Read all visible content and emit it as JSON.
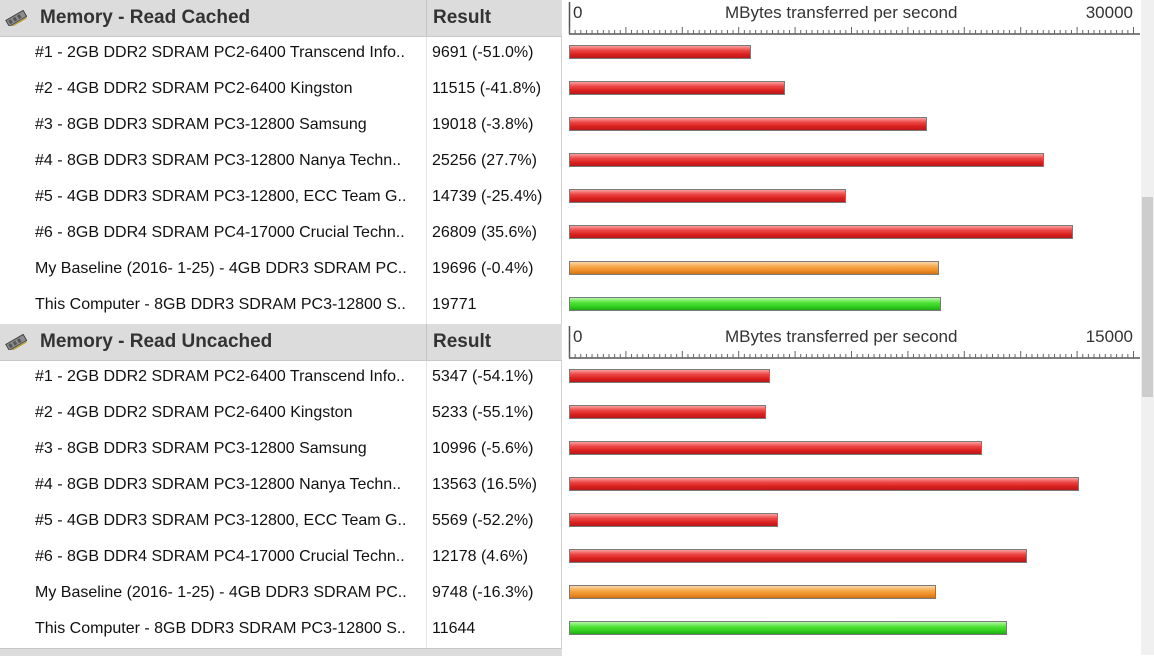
{
  "sections": [
    {
      "title": "Memory - Read Cached",
      "result_header": "Result",
      "axis": {
        "min_label": "0",
        "title": "MBytes transferred per second",
        "max_label": "30000",
        "max": 30000
      },
      "rows": [
        {
          "name": "#1 - 2GB DDR2 SDRAM PC2-6400 Transcend Info..",
          "result": "9691 (-51.0%)",
          "value": 9691,
          "color": "red"
        },
        {
          "name": "#2 - 4GB DDR2 SDRAM PC2-6400 Kingston",
          "result": "11515 (-41.8%)",
          "value": 11515,
          "color": "red"
        },
        {
          "name": "#3 - 8GB DDR3 SDRAM PC3-12800 Samsung",
          "result": "19018 (-3.8%)",
          "value": 19018,
          "color": "red"
        },
        {
          "name": "#4 - 8GB DDR3 SDRAM PC3-12800 Nanya Techn..",
          "result": "25256 (27.7%)",
          "value": 25256,
          "color": "red"
        },
        {
          "name": "#5 - 4GB DDR3 SDRAM PC3-12800, ECC Team G..",
          "result": "14739 (-25.4%)",
          "value": 14739,
          "color": "red"
        },
        {
          "name": "#6 - 8GB DDR4 SDRAM PC4-17000 Crucial Techn..",
          "result": "26809 (35.6%)",
          "value": 26809,
          "color": "red"
        },
        {
          "name": "My Baseline (2016- 1-25) - 4GB DDR3 SDRAM PC..",
          "result": "19696 (-0.4%)",
          "value": 19696,
          "color": "orange"
        },
        {
          "name": "This Computer - 8GB DDR3 SDRAM PC3-12800 S..",
          "result": "19771",
          "value": 19771,
          "color": "green"
        }
      ]
    },
    {
      "title": "Memory - Read Uncached",
      "result_header": "Result",
      "axis": {
        "min_label": "0",
        "title": "MBytes transferred per second",
        "max_label": "15000",
        "max": 15000
      },
      "rows": [
        {
          "name": "#1 - 2GB DDR2 SDRAM PC2-6400 Transcend Info..",
          "result": "5347 (-54.1%)",
          "value": 5347,
          "color": "red"
        },
        {
          "name": "#2 - 4GB DDR2 SDRAM PC2-6400 Kingston",
          "result": "5233 (-55.1%)",
          "value": 5233,
          "color": "red"
        },
        {
          "name": "#3 - 8GB DDR3 SDRAM PC3-12800 Samsung",
          "result": "10996 (-5.6%)",
          "value": 10996,
          "color": "red"
        },
        {
          "name": "#4 - 8GB DDR3 SDRAM PC3-12800 Nanya Techn..",
          "result": "13563 (16.5%)",
          "value": 13563,
          "color": "red"
        },
        {
          "name": "#5 - 4GB DDR3 SDRAM PC3-12800, ECC Team G..",
          "result": "5569 (-52.2%)",
          "value": 5569,
          "color": "red"
        },
        {
          "name": "#6 - 8GB DDR4 SDRAM PC4-17000 Crucial Techn..",
          "result": "12178 (4.6%)",
          "value": 12178,
          "color": "red"
        },
        {
          "name": "My Baseline (2016- 1-25) - 4GB DDR3 SDRAM PC..",
          "result": "9748 (-16.3%)",
          "value": 9748,
          "color": "orange"
        },
        {
          "name": "This Computer - 8GB DDR3 SDRAM PC3-12800 S..",
          "result": "11644",
          "value": 11644,
          "color": "green"
        }
      ]
    }
  ],
  "chart_data": [
    {
      "type": "bar",
      "title": "Memory - Read Cached",
      "xlabel": "MBytes transferred per second",
      "xlim": [
        0,
        30000
      ],
      "categories": [
        "#1 - 2GB DDR2 SDRAM PC2-6400 Transcend Info..",
        "#2 - 4GB DDR2 SDRAM PC2-6400 Kingston",
        "#3 - 8GB DDR3 SDRAM PC3-12800 Samsung",
        "#4 - 8GB DDR3 SDRAM PC3-12800 Nanya Techn..",
        "#5 - 4GB DDR3 SDRAM PC3-12800, ECC Team G..",
        "#6 - 8GB DDR4 SDRAM PC4-17000 Crucial Techn..",
        "My Baseline (2016- 1-25) - 4GB DDR3 SDRAM PC..",
        "This Computer - 8GB DDR3 SDRAM PC3-12800 S.."
      ],
      "values": [
        9691,
        11515,
        19018,
        25256,
        14739,
        26809,
        19696,
        19771
      ]
    },
    {
      "type": "bar",
      "title": "Memory - Read Uncached",
      "xlabel": "MBytes transferred per second",
      "xlim": [
        0,
        15000
      ],
      "categories": [
        "#1 - 2GB DDR2 SDRAM PC2-6400 Transcend Info..",
        "#2 - 4GB DDR2 SDRAM PC2-6400 Kingston",
        "#3 - 8GB DDR3 SDRAM PC3-12800 Samsung",
        "#4 - 8GB DDR3 SDRAM PC3-12800 Nanya Techn..",
        "#5 - 4GB DDR3 SDRAM PC3-12800, ECC Team G..",
        "#6 - 8GB DDR4 SDRAM PC4-17000 Crucial Techn..",
        "My Baseline (2016- 1-25) - 4GB DDR3 SDRAM PC..",
        "This Computer - 8GB DDR3 SDRAM PC3-12800 S.."
      ],
      "values": [
        5347,
        5233,
        10996,
        13563,
        5569,
        12178,
        9748,
        11644
      ]
    }
  ],
  "icons": {
    "section_icon": "memory-module-icon"
  },
  "colors": {
    "red": "#e03030",
    "orange": "#f39a3c",
    "green": "#3cd82a",
    "header_bg": "#dcdcdc"
  }
}
